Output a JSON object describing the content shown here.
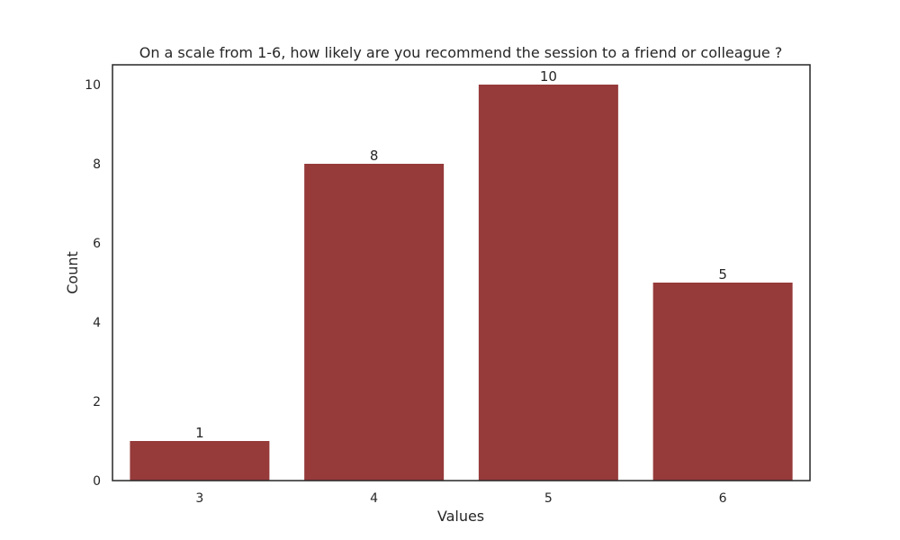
{
  "chart_data": {
    "type": "bar",
    "title": "On a scale from 1-6, how likely are you recommend the session to a friend or colleague ?",
    "xlabel": "Values",
    "ylabel": "Count",
    "categories": [
      "3",
      "4",
      "5",
      "6"
    ],
    "values": [
      1,
      8,
      10,
      5
    ],
    "data_labels": [
      "1",
      "8",
      "10",
      "5"
    ],
    "ylim": [
      0,
      10.5
    ],
    "yticks": [
      0,
      2,
      4,
      6,
      8,
      10
    ],
    "grid": false,
    "bar_color": "#963a3a"
  }
}
